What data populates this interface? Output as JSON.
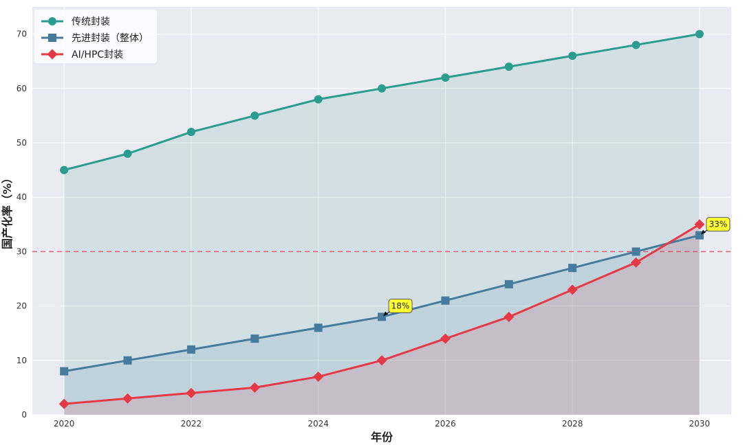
{
  "chart_data": {
    "type": "line",
    "title": "",
    "xlabel": "年份",
    "ylabel": "国产化率（%）",
    "xlim": [
      2019.5,
      2030.5
    ],
    "ylim": [
      0,
      75
    ],
    "x": [
      2020,
      2021,
      2022,
      2023,
      2024,
      2025,
      2026,
      2027,
      2028,
      2029,
      2030
    ],
    "x_ticks": [
      2020,
      2022,
      2024,
      2026,
      2028,
      2030
    ],
    "y_ticks": [
      0,
      10,
      20,
      30,
      40,
      50,
      60,
      70
    ],
    "grid": true,
    "legend_position": "top-left",
    "series": [
      {
        "name": "传统封装",
        "values": [
          45,
          48,
          52,
          55,
          58,
          60,
          62,
          64,
          66,
          68,
          70
        ],
        "color": "#2a9d8f",
        "marker": "circle",
        "fill": true
      },
      {
        "name": "先进封装（整体）",
        "values": [
          8,
          10,
          12,
          14,
          16,
          18,
          21,
          24,
          27,
          30,
          33
        ],
        "color": "#457b9d",
        "marker": "square",
        "fill": true
      },
      {
        "name": "AI/HPC封装",
        "values": [
          2,
          3,
          4,
          5,
          7,
          10,
          14,
          18,
          23,
          28,
          35
        ],
        "color": "#e63946",
        "marker": "diamond",
        "fill": true
      }
    ],
    "reference_line": {
      "y": 30,
      "color": "#e63946",
      "style": "dashed"
    },
    "annotations": [
      {
        "text": "18%",
        "x": 2025,
        "y": 18
      },
      {
        "text": "33%",
        "x": 2030,
        "y": 33
      }
    ]
  }
}
